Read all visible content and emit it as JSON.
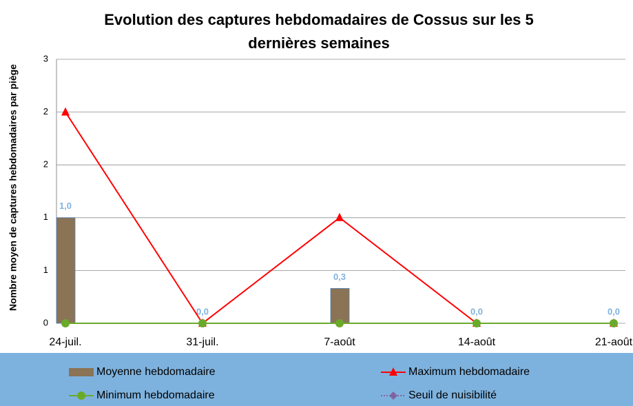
{
  "chart_data": {
    "type": "line",
    "title": "Evolution des captures hebdomadaires de Cossus sur les 5 dernières semaines",
    "y_label": "Nombre moyen de captures hebdomadaires par piège",
    "categories": [
      "24-juil.",
      "31-juil.",
      "7-août",
      "14-août",
      "21-août"
    ],
    "ylim": [
      0,
      2.5
    ],
    "yticks": [
      0,
      {
        "value": 0.5,
        "label": "1"
      },
      {
        "value": 1,
        "label": "1"
      },
      {
        "value": 1.5,
        "label": "2"
      },
      {
        "value": 2,
        "label": "2"
      },
      {
        "value": 2.5,
        "label": "3"
      }
    ],
    "grid": true,
    "series": [
      {
        "name": "Moyenne hebdomadaire",
        "kind": "bar",
        "color": "#8b7355",
        "values": [
          1,
          0,
          0.33,
          0,
          0
        ],
        "value_labels": [
          "1,0",
          "0,0",
          "0,3",
          "0,0",
          "0,0"
        ]
      },
      {
        "name": "Maximum hebdomadaire",
        "kind": "line",
        "marker": "triangle",
        "color": "#ff0000",
        "values": [
          2,
          0,
          1,
          0,
          0
        ]
      },
      {
        "name": "Minimum hebdomadaire",
        "kind": "line",
        "marker": "circle",
        "color": "#6aaa2a",
        "values": [
          0,
          0,
          0,
          0,
          0
        ]
      },
      {
        "name": "Seuil de nuisibilité",
        "kind": "line",
        "marker": "diamond",
        "color": "#8064a2",
        "values": [
          null,
          null,
          null,
          null,
          null
        ]
      }
    ]
  }
}
